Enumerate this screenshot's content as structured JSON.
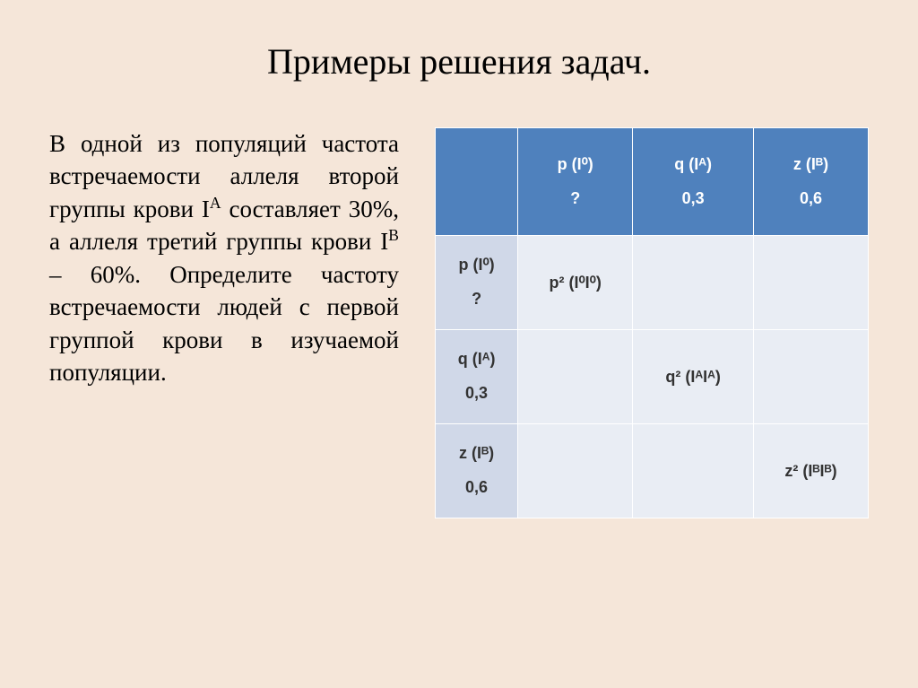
{
  "title": "Примеры решения задач.",
  "paragraph": {
    "parts": [
      "В одной из популяций частота встречаемости аллеля второй группы крови I",
      "A",
      " составляет 30%, а аллеля третий группы крови I",
      "B",
      " – 60%. Определите частоту встречаемости людей с первой группой крови в изучаемой популяции."
    ]
  },
  "table": {
    "col_headers": [
      {
        "label": "p (I⁰)",
        "value": "?"
      },
      {
        "label": "q (Iᴬ)",
        "value": "0,3"
      },
      {
        "label": "z (Iᴮ)",
        "value": "0,6"
      }
    ],
    "row_headers": [
      {
        "label": "p (I⁰)",
        "value": "?"
      },
      {
        "label": "q (Iᴬ)",
        "value": "0,3"
      },
      {
        "label": "z (Iᴮ)",
        "value": "0,6"
      }
    ],
    "body": [
      [
        "p² (I⁰I⁰)",
        "",
        ""
      ],
      [
        "",
        "q² (IᴬIᴬ)",
        ""
      ],
      [
        "",
        "",
        "z² (IᴮIᴮ)"
      ]
    ]
  },
  "colors": {
    "background": "#f5e6d9",
    "header_bg": "#4f81bd",
    "side_bg": "#d0d8e8",
    "body_bg": "#e9edf4",
    "border": "#ffffff",
    "header_text": "#ffffff",
    "body_text": "#333333"
  }
}
